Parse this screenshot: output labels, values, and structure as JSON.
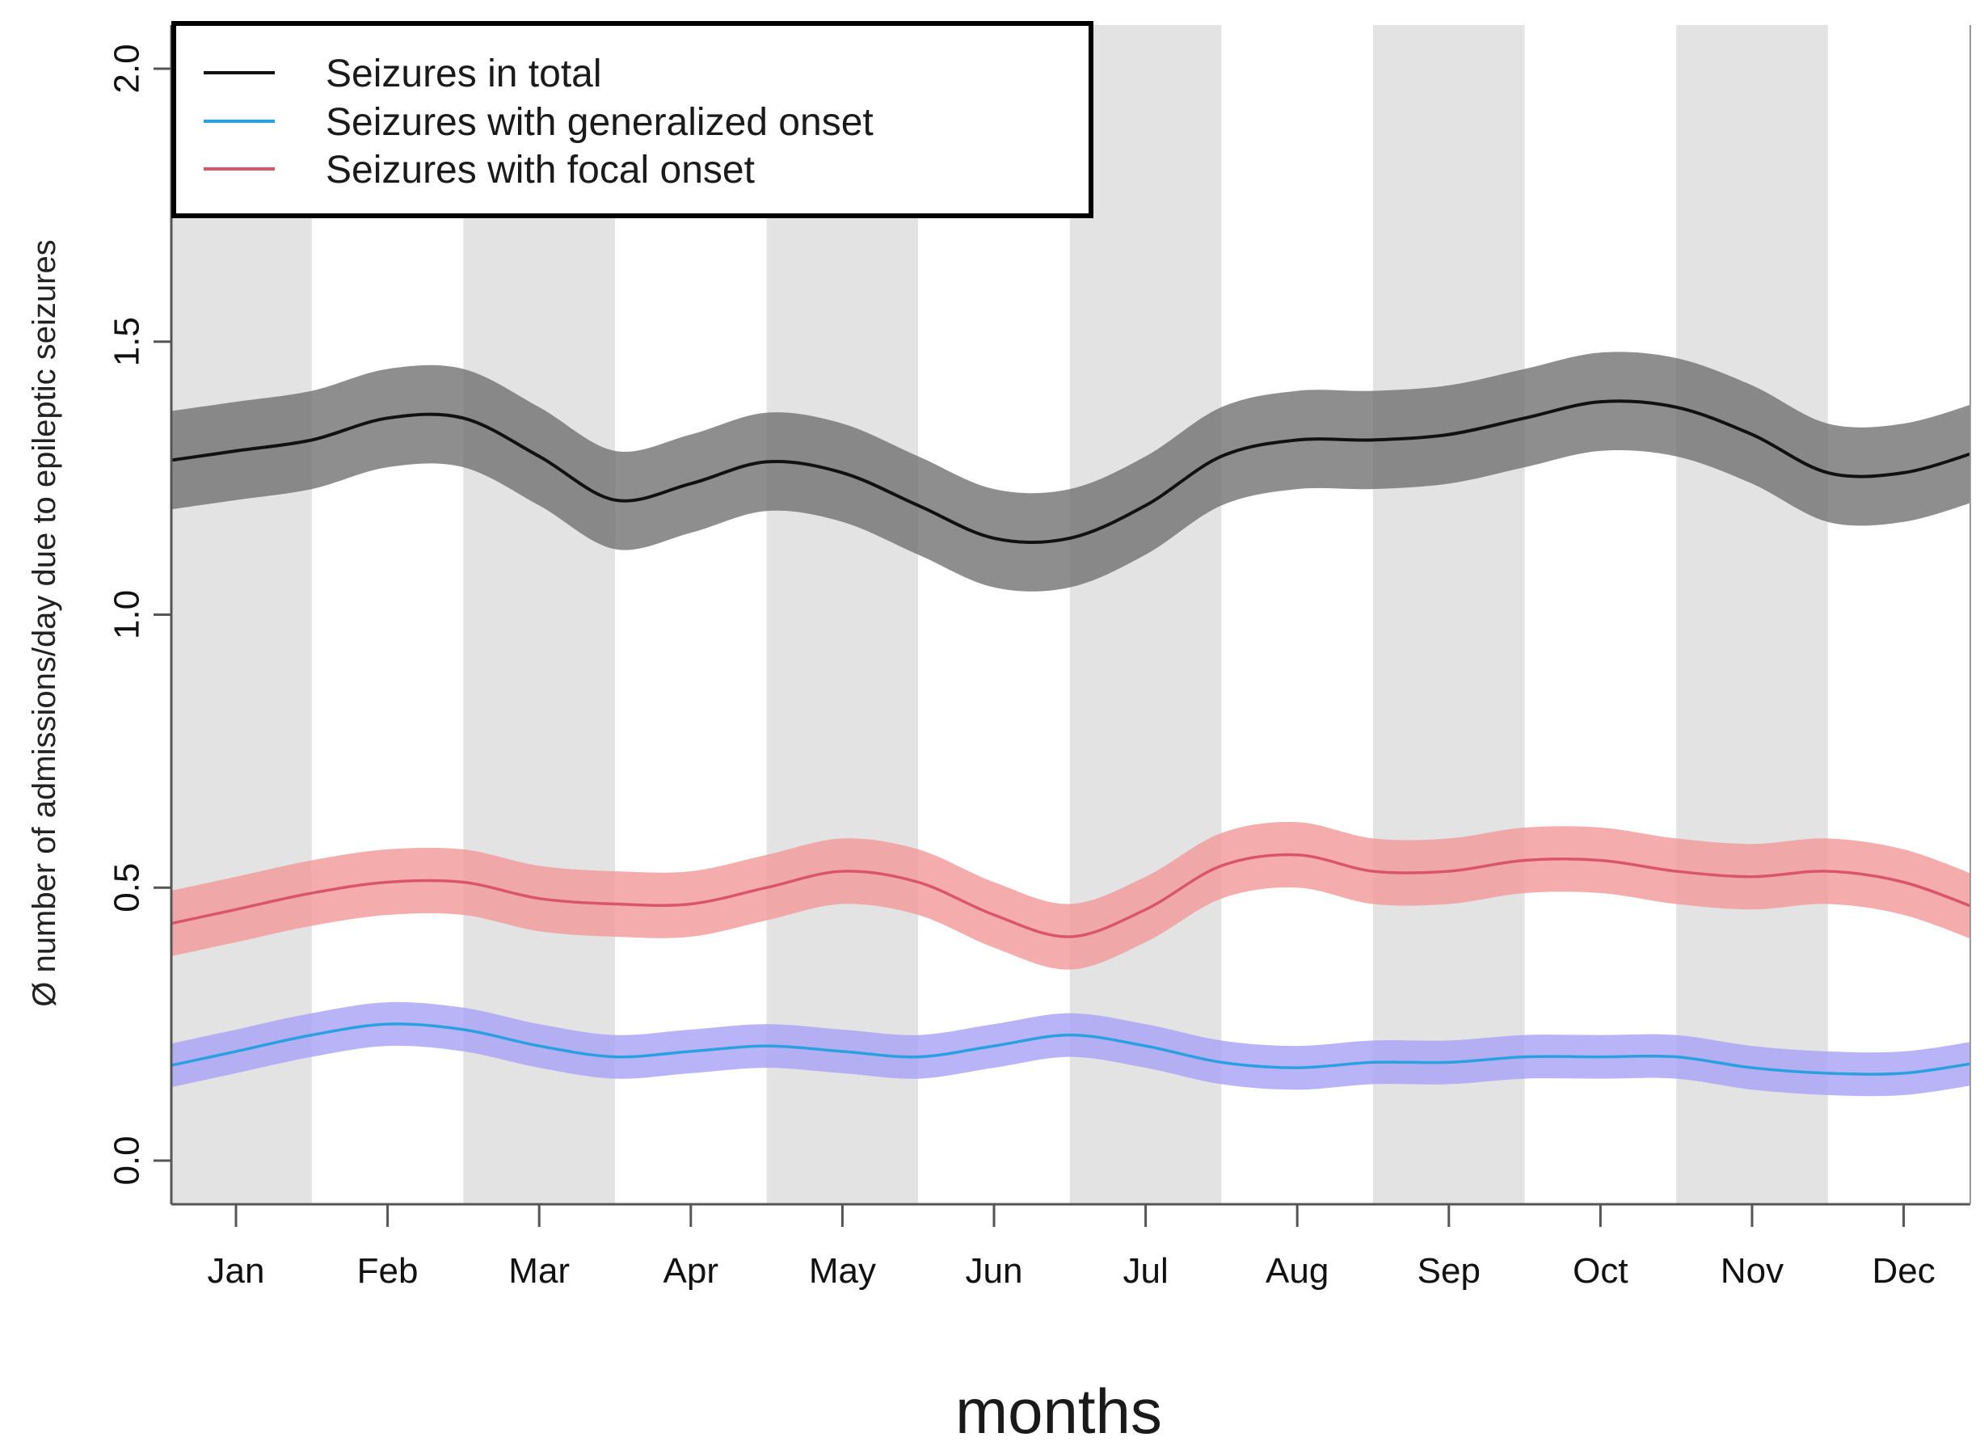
{
  "colors": {
    "total_line": "#111111",
    "total_band": "#6e6e6e",
    "generalized_line": "#2aa0e0",
    "generalized_band": "#a9a4f6",
    "focal_line": "#d9566a",
    "focal_band": "#f19a9a",
    "month_stripe": "#e3e3e3"
  },
  "chart_data": {
    "type": "line",
    "title": "",
    "xlabel": "months",
    "ylabel": "Ø number of admissions/day due to epileptic seizures",
    "ylim": [
      -0.08,
      2.08
    ],
    "yticks": [
      "0.0",
      "0.5",
      "1.0",
      "1.5",
      "2.0"
    ],
    "categories": [
      "Jan",
      "Feb",
      "Mar",
      "Apr",
      "May",
      "Jun",
      "Jul",
      "Aug",
      "Sep",
      "Oct",
      "Nov",
      "Dec"
    ],
    "shaded_months": [
      "Jan",
      "Mar",
      "May",
      "Jul",
      "Sep",
      "Nov"
    ],
    "x": [
      1,
      1.5,
      2,
      2.5,
      3,
      3.5,
      4,
      4.5,
      5,
      5.5,
      6,
      6.5,
      7,
      7.5,
      8,
      8.5,
      9,
      9.5,
      10,
      10.5,
      11,
      11.5,
      12,
      12.5
    ],
    "legend": {
      "position": "top-left",
      "entries": [
        "Seizures in total",
        "Seizures with generalized onset",
        "Seizures with focal onset"
      ]
    },
    "series": [
      {
        "name": "Seizures in total",
        "color_key": "total",
        "values": [
          1.3,
          1.32,
          1.36,
          1.36,
          1.29,
          1.21,
          1.24,
          1.28,
          1.26,
          1.2,
          1.14,
          1.14,
          1.2,
          1.29,
          1.32,
          1.32,
          1.33,
          1.36,
          1.39,
          1.38,
          1.33,
          1.26,
          1.26,
          1.3
        ],
        "lower": [
          1.21,
          1.23,
          1.27,
          1.27,
          1.2,
          1.12,
          1.15,
          1.19,
          1.17,
          1.11,
          1.05,
          1.05,
          1.11,
          1.2,
          1.23,
          1.23,
          1.24,
          1.27,
          1.3,
          1.29,
          1.24,
          1.17,
          1.17,
          1.21
        ],
        "upper": [
          1.39,
          1.41,
          1.45,
          1.45,
          1.38,
          1.3,
          1.33,
          1.37,
          1.35,
          1.29,
          1.23,
          1.23,
          1.29,
          1.38,
          1.41,
          1.41,
          1.42,
          1.45,
          1.48,
          1.47,
          1.42,
          1.35,
          1.35,
          1.39
        ]
      },
      {
        "name": "Seizures with generalized onset",
        "color_key": "generalized",
        "values": [
          0.2,
          0.23,
          0.25,
          0.24,
          0.21,
          0.19,
          0.2,
          0.21,
          0.2,
          0.19,
          0.21,
          0.23,
          0.21,
          0.18,
          0.17,
          0.18,
          0.18,
          0.19,
          0.19,
          0.19,
          0.17,
          0.16,
          0.16,
          0.18
        ],
        "lower": [
          0.16,
          0.19,
          0.21,
          0.2,
          0.17,
          0.15,
          0.16,
          0.17,
          0.16,
          0.15,
          0.17,
          0.19,
          0.17,
          0.14,
          0.13,
          0.14,
          0.14,
          0.15,
          0.15,
          0.15,
          0.13,
          0.12,
          0.12,
          0.14
        ],
        "upper": [
          0.24,
          0.27,
          0.29,
          0.28,
          0.25,
          0.23,
          0.24,
          0.25,
          0.24,
          0.23,
          0.25,
          0.27,
          0.25,
          0.22,
          0.21,
          0.22,
          0.22,
          0.23,
          0.23,
          0.23,
          0.21,
          0.2,
          0.2,
          0.22
        ]
      },
      {
        "name": "Seizures with focal onset",
        "color_key": "focal",
        "values": [
          0.46,
          0.49,
          0.51,
          0.51,
          0.48,
          0.47,
          0.47,
          0.5,
          0.53,
          0.51,
          0.45,
          0.41,
          0.46,
          0.54,
          0.56,
          0.53,
          0.53,
          0.55,
          0.55,
          0.53,
          0.52,
          0.53,
          0.51,
          0.46
        ],
        "lower": [
          0.4,
          0.43,
          0.45,
          0.45,
          0.42,
          0.41,
          0.41,
          0.44,
          0.47,
          0.45,
          0.39,
          0.35,
          0.4,
          0.48,
          0.5,
          0.47,
          0.47,
          0.49,
          0.49,
          0.47,
          0.46,
          0.47,
          0.45,
          0.4
        ],
        "upper": [
          0.52,
          0.55,
          0.57,
          0.57,
          0.54,
          0.53,
          0.53,
          0.56,
          0.59,
          0.57,
          0.51,
          0.47,
          0.52,
          0.6,
          0.62,
          0.59,
          0.59,
          0.61,
          0.61,
          0.59,
          0.58,
          0.59,
          0.57,
          0.52
        ]
      }
    ]
  }
}
